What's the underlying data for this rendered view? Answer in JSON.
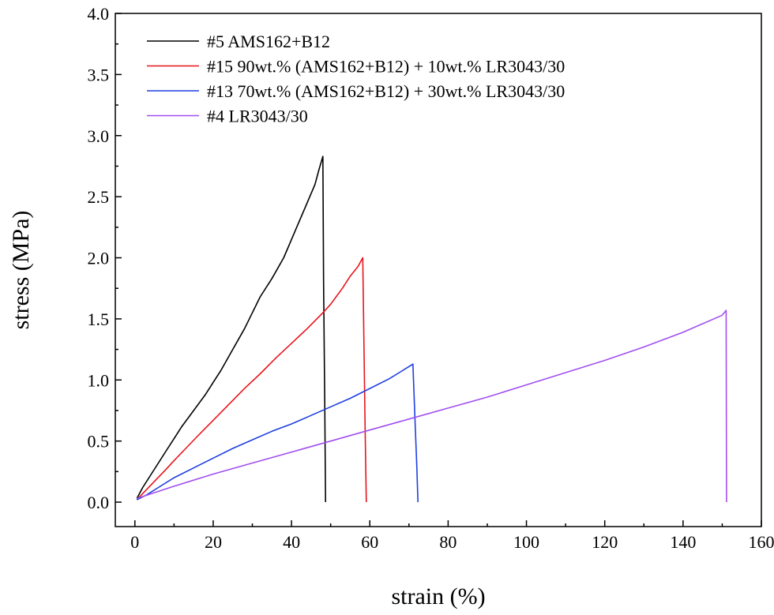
{
  "chart_data": {
    "type": "line",
    "xlabel": "strain (%)",
    "ylabel": "stress (MPa)",
    "xlim": [
      -5,
      160
    ],
    "ylim": [
      -0.2,
      4.0
    ],
    "xticks": [
      0,
      20,
      40,
      60,
      80,
      100,
      120,
      140,
      160
    ],
    "yticks": [
      0.0,
      0.5,
      1.0,
      1.5,
      2.0,
      2.5,
      3.0,
      3.5,
      4.0
    ],
    "xtick_labels": [
      "0",
      "20",
      "40",
      "60",
      "80",
      "100",
      "120",
      "140",
      "160"
    ],
    "ytick_labels": [
      "0.0",
      "0.5",
      "1.0",
      "1.5",
      "2.0",
      "2.5",
      "3.0",
      "3.5",
      "4.0"
    ],
    "legend_position": "top-left",
    "grid": false,
    "series": [
      {
        "name": "#5 AMS162+B12",
        "color": "#000000",
        "x": [
          0.5,
          2,
          4,
          6,
          8,
          10,
          12,
          15,
          18,
          20,
          22,
          25,
          28,
          30,
          32,
          35,
          38,
          40,
          42,
          44,
          46,
          47,
          48,
          48.2,
          48.5,
          48.7
        ],
        "y": [
          0.03,
          0.12,
          0.22,
          0.32,
          0.42,
          0.52,
          0.62,
          0.75,
          0.88,
          0.98,
          1.08,
          1.25,
          1.42,
          1.55,
          1.68,
          1.83,
          2.0,
          2.15,
          2.3,
          2.45,
          2.6,
          2.72,
          2.83,
          1.8,
          0.8,
          0.0
        ]
      },
      {
        "name": "#15 90wt.% (AMS162+B12) + 10wt.% LR3043/30",
        "color": "#e8141c",
        "x": [
          0.5,
          2,
          5,
          8,
          10,
          13,
          16,
          20,
          24,
          28,
          32,
          36,
          40,
          44,
          48,
          50,
          53,
          55,
          57,
          58.2,
          58.5,
          58.8,
          59.1
        ],
        "y": [
          0.02,
          0.07,
          0.17,
          0.27,
          0.34,
          0.44,
          0.54,
          0.67,
          0.8,
          0.93,
          1.05,
          1.18,
          1.3,
          1.42,
          1.55,
          1.62,
          1.75,
          1.85,
          1.93,
          2.0,
          1.3,
          0.6,
          0.0
        ]
      },
      {
        "name": "#13 70wt.% (AMS162+B12) + 30wt.% LR3043/30",
        "color": "#1e3fe0",
        "x": [
          0.5,
          3,
          6,
          10,
          15,
          20,
          25,
          30,
          35,
          40,
          45,
          50,
          55,
          60,
          65,
          68,
          70,
          71,
          71.5,
          72,
          72.3
        ],
        "y": [
          0.02,
          0.06,
          0.12,
          0.2,
          0.28,
          0.36,
          0.44,
          0.51,
          0.58,
          0.64,
          0.71,
          0.78,
          0.85,
          0.93,
          1.01,
          1.07,
          1.11,
          1.13,
          0.7,
          0.3,
          0.0
        ]
      },
      {
        "name": "#4 LR3043/30",
        "color": "#a14ff0",
        "x": [
          0.5,
          10,
          20,
          30,
          40,
          50,
          60,
          70,
          80,
          90,
          100,
          110,
          120,
          130,
          140,
          150,
          151,
          151.1
        ],
        "y": [
          0.03,
          0.13,
          0.23,
          0.32,
          0.41,
          0.5,
          0.59,
          0.68,
          0.77,
          0.86,
          0.96,
          1.06,
          1.16,
          1.27,
          1.39,
          1.53,
          1.57,
          0.0
        ]
      }
    ]
  }
}
